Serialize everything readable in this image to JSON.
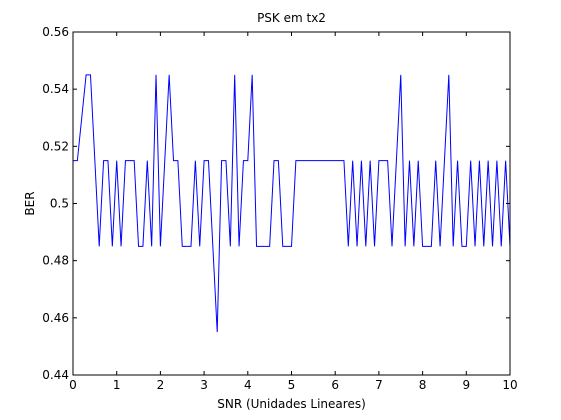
{
  "chart_data": {
    "type": "line",
    "title": "PSK em tx2",
    "xlabel": "SNR (Unidades Lineares)",
    "ylabel": "BER",
    "xlim": [
      0,
      10
    ],
    "ylim": [
      0.44,
      0.56
    ],
    "xticks": [
      0,
      1,
      2,
      3,
      4,
      5,
      6,
      7,
      8,
      9,
      10
    ],
    "yticks": [
      0.44,
      0.46,
      0.48,
      0.5,
      0.52,
      0.54,
      0.56
    ],
    "xtick_labels": [
      "0",
      "1",
      "2",
      "3",
      "4",
      "5",
      "6",
      "7",
      "8",
      "9",
      "10"
    ],
    "ytick_labels": [
      "0.44",
      "0.46",
      "0.48",
      "0.5",
      "0.52",
      "0.54",
      "0.56"
    ],
    "grid": false,
    "series": [
      {
        "color": "#0000ff",
        "x": [
          0,
          0.1,
          0.2,
          0.3,
          0.4,
          0.5,
          0.6,
          0.7,
          0.8,
          0.9,
          1.0,
          1.1,
          1.2,
          1.3,
          1.4,
          1.5,
          1.6,
          1.7,
          1.8,
          1.9,
          2.0,
          2.1,
          2.2,
          2.3,
          2.4,
          2.5,
          2.6,
          2.7,
          2.8,
          2.9,
          3.0,
          3.1,
          3.2,
          3.3,
          3.4,
          3.5,
          3.6,
          3.7,
          3.8,
          3.9,
          4.0,
          4.1,
          4.2,
          4.3,
          4.4,
          4.5,
          4.6,
          4.7,
          4.8,
          4.9,
          5.0,
          5.1,
          5.2,
          5.3,
          5.4,
          5.5,
          5.6,
          5.7,
          5.8,
          5.9,
          6.0,
          6.1,
          6.2,
          6.3,
          6.4,
          6.5,
          6.6,
          6.7,
          6.8,
          6.9,
          7.0,
          7.1,
          7.2,
          7.3,
          7.4,
          7.5,
          7.6,
          7.7,
          7.8,
          7.9,
          8.0,
          8.1,
          8.2,
          8.3,
          8.4,
          8.5,
          8.6,
          8.7,
          8.8,
          8.9,
          9.0,
          9.1,
          9.2,
          9.3,
          9.4,
          9.5,
          9.6,
          9.7,
          9.8,
          9.9,
          10.0
        ],
        "y": [
          0.515,
          0.515,
          0.53,
          0.545,
          0.545,
          0.515,
          0.485,
          0.515,
          0.515,
          0.485,
          0.515,
          0.485,
          0.515,
          0.515,
          0.515,
          0.485,
          0.485,
          0.515,
          0.485,
          0.545,
          0.485,
          0.515,
          0.545,
          0.515,
          0.515,
          0.485,
          0.485,
          0.485,
          0.515,
          0.485,
          0.515,
          0.515,
          0.485,
          0.455,
          0.515,
          0.515,
          0.485,
          0.545,
          0.485,
          0.515,
          0.515,
          0.545,
          0.485,
          0.485,
          0.485,
          0.485,
          0.515,
          0.515,
          0.485,
          0.485,
          0.485,
          0.515,
          0.515,
          0.515,
          0.515,
          0.515,
          0.515,
          0.515,
          0.515,
          0.515,
          0.515,
          0.515,
          0.515,
          0.485,
          0.515,
          0.485,
          0.515,
          0.485,
          0.515,
          0.485,
          0.515,
          0.515,
          0.515,
          0.485,
          0.515,
          0.545,
          0.485,
          0.515,
          0.485,
          0.515,
          0.485,
          0.485,
          0.485,
          0.515,
          0.485,
          0.515,
          0.545,
          0.485,
          0.515,
          0.485,
          0.485,
          0.515,
          0.485,
          0.515,
          0.485,
          0.515,
          0.485,
          0.515,
          0.485,
          0.515,
          0.485
        ]
      }
    ]
  }
}
